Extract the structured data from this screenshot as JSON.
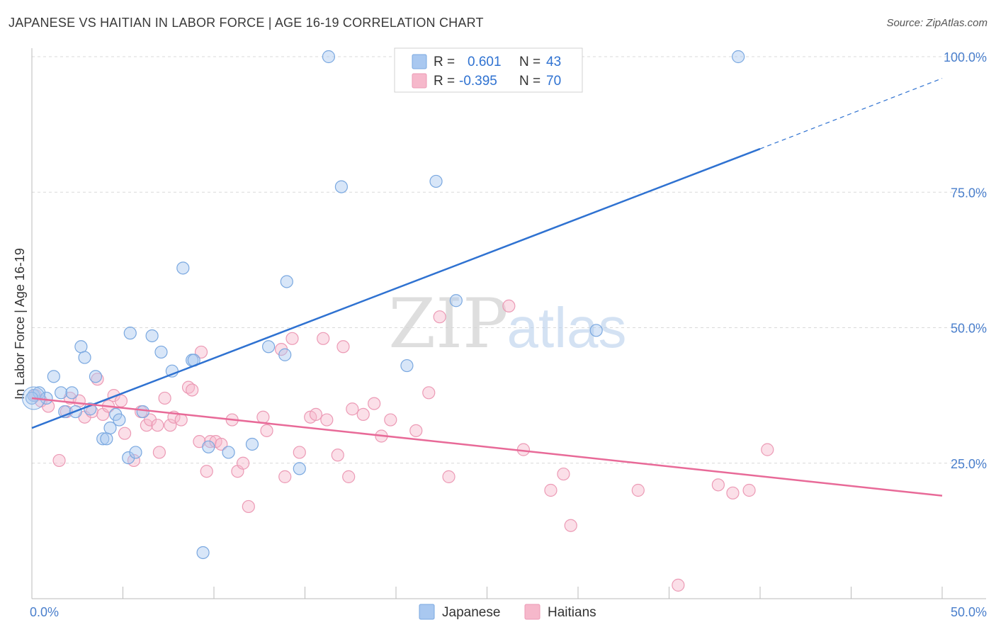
{
  "header": {
    "title": "JAPANESE VS HAITIAN IN LABOR FORCE | AGE 16-19 CORRELATION CHART",
    "source": "Source: ZipAtlas.com"
  },
  "watermark": {
    "zip": "ZIP",
    "atlas": "atlas"
  },
  "legend_top": {
    "rows": [
      {
        "r_label": "R =",
        "r_value": "0.601",
        "n_label": "N =",
        "n_value": "43"
      },
      {
        "r_label": "R =",
        "r_value": "-0.395",
        "n_label": "N =",
        "n_value": "70"
      }
    ]
  },
  "legend_bottom": {
    "japanese": "Japanese",
    "haitians": "Haitians"
  },
  "colors": {
    "japanese_fill": "#a9c8f0",
    "japanese_stroke": "#7aa8e0",
    "japanese_line": "#2f72d1",
    "haitian_fill": "#f6b8cb",
    "haitian_stroke": "#ec9ab5",
    "haitian_line": "#e86a98",
    "tick_label": "#4a7fcc",
    "grid": "#d9d9d9"
  },
  "chart_data": {
    "type": "scatter",
    "title": "JAPANESE VS HAITIAN IN LABOR FORCE | AGE 16-19 CORRELATION CHART",
    "xlabel": "",
    "ylabel": "In Labor Force | Age 16-19",
    "xlim": [
      0,
      50
    ],
    "ylim": [
      0,
      100
    ],
    "x_tick_labels": [
      {
        "value": 0,
        "label": "0.0%"
      },
      {
        "value": 50,
        "label": "50.0%"
      }
    ],
    "y_tick_labels": [
      {
        "value": 25,
        "label": "25.0%"
      },
      {
        "value": 50,
        "label": "50.0%"
      },
      {
        "value": 75,
        "label": "75.0%"
      },
      {
        "value": 100,
        "label": "100.0%"
      }
    ],
    "grid": true,
    "series": [
      {
        "name": "Japanese",
        "r": 0.601,
        "n": 43,
        "trend": {
          "x0": 0,
          "y0": 31.5,
          "x1": 40,
          "y1": 83,
          "dashed_to_x": 50,
          "dashed_to_y": 96
        },
        "points": [
          [
            0.1,
            37.5
          ],
          [
            0.4,
            38
          ],
          [
            0.8,
            37
          ],
          [
            1.2,
            41
          ],
          [
            1.6,
            38
          ],
          [
            1.8,
            34.5
          ],
          [
            2.2,
            38
          ],
          [
            2.4,
            34.5
          ],
          [
            2.7,
            46.5
          ],
          [
            2.9,
            44.5
          ],
          [
            3.2,
            35
          ],
          [
            3.5,
            41
          ],
          [
            3.9,
            29.5
          ],
          [
            4.1,
            29.5
          ],
          [
            4.3,
            31.5
          ],
          [
            4.6,
            34
          ],
          [
            4.8,
            33
          ],
          [
            5.3,
            26
          ],
          [
            5.4,
            49
          ],
          [
            5.7,
            27
          ],
          [
            6.1,
            34.5
          ],
          [
            6.6,
            48.5
          ],
          [
            7.1,
            45.5
          ],
          [
            7.7,
            42
          ],
          [
            8.3,
            61
          ],
          [
            8.8,
            44
          ],
          [
            8.9,
            44
          ],
          [
            9.4,
            8.5
          ],
          [
            9.7,
            28
          ],
          [
            10.8,
            27
          ],
          [
            12.1,
            28.5
          ],
          [
            13.0,
            46.5
          ],
          [
            13.9,
            45
          ],
          [
            14.0,
            58.5
          ],
          [
            14.7,
            24
          ],
          [
            16.3,
            100
          ],
          [
            17.0,
            76
          ],
          [
            20.6,
            43
          ],
          [
            22.2,
            77
          ],
          [
            23.3,
            55
          ],
          [
            31.0,
            49.5
          ],
          [
            38.8,
            100
          ],
          [
            0.0,
            37
          ]
        ]
      },
      {
        "name": "Haitians",
        "r": -0.395,
        "n": 70,
        "trend": {
          "x0": 0,
          "y0": 37,
          "x1": 50,
          "y1": 19
        },
        "points": [
          [
            0.2,
            37.5
          ],
          [
            0.5,
            36.5
          ],
          [
            0.9,
            35.5
          ],
          [
            1.5,
            25.5
          ],
          [
            1.9,
            34.5
          ],
          [
            2.1,
            37
          ],
          [
            2.6,
            36.5
          ],
          [
            2.9,
            33.5
          ],
          [
            3.3,
            34.5
          ],
          [
            3.6,
            40.5
          ],
          [
            3.9,
            34
          ],
          [
            4.2,
            35.5
          ],
          [
            4.5,
            37.5
          ],
          [
            4.9,
            36.5
          ],
          [
            5.1,
            30.5
          ],
          [
            5.6,
            25.5
          ],
          [
            6.0,
            34.5
          ],
          [
            6.3,
            32
          ],
          [
            6.5,
            33
          ],
          [
            7.0,
            27
          ],
          [
            7.3,
            37
          ],
          [
            7.6,
            32
          ],
          [
            7.8,
            33.5
          ],
          [
            8.2,
            33
          ],
          [
            8.6,
            39
          ],
          [
            8.8,
            38.5
          ],
          [
            9.3,
            45.5
          ],
          [
            9.6,
            23.5
          ],
          [
            9.8,
            29
          ],
          [
            10.1,
            29
          ],
          [
            10.4,
            28.5
          ],
          [
            11.0,
            33
          ],
          [
            11.3,
            23.5
          ],
          [
            11.6,
            25
          ],
          [
            11.9,
            17
          ],
          [
            12.7,
            33.5
          ],
          [
            12.9,
            31
          ],
          [
            13.7,
            46
          ],
          [
            13.9,
            22.5
          ],
          [
            14.3,
            48
          ],
          [
            14.7,
            27
          ],
          [
            15.3,
            33.5
          ],
          [
            15.6,
            34
          ],
          [
            16.0,
            48
          ],
          [
            16.2,
            33
          ],
          [
            16.8,
            26.5
          ],
          [
            17.1,
            46.5
          ],
          [
            17.4,
            22.5
          ],
          [
            17.6,
            35
          ],
          [
            18.2,
            34
          ],
          [
            18.8,
            36
          ],
          [
            19.2,
            30
          ],
          [
            19.7,
            33
          ],
          [
            21.1,
            31
          ],
          [
            21.8,
            38
          ],
          [
            22.4,
            52
          ],
          [
            22.9,
            22.5
          ],
          [
            26.2,
            54
          ],
          [
            27.0,
            27.5
          ],
          [
            28.5,
            20
          ],
          [
            29.2,
            23
          ],
          [
            29.6,
            13.5
          ],
          [
            33.3,
            20
          ],
          [
            35.5,
            2.5
          ],
          [
            37.7,
            21
          ],
          [
            38.5,
            19.5
          ],
          [
            39.4,
            20
          ],
          [
            40.4,
            27.5
          ],
          [
            9.2,
            29
          ],
          [
            6.9,
            32
          ]
        ]
      }
    ]
  }
}
